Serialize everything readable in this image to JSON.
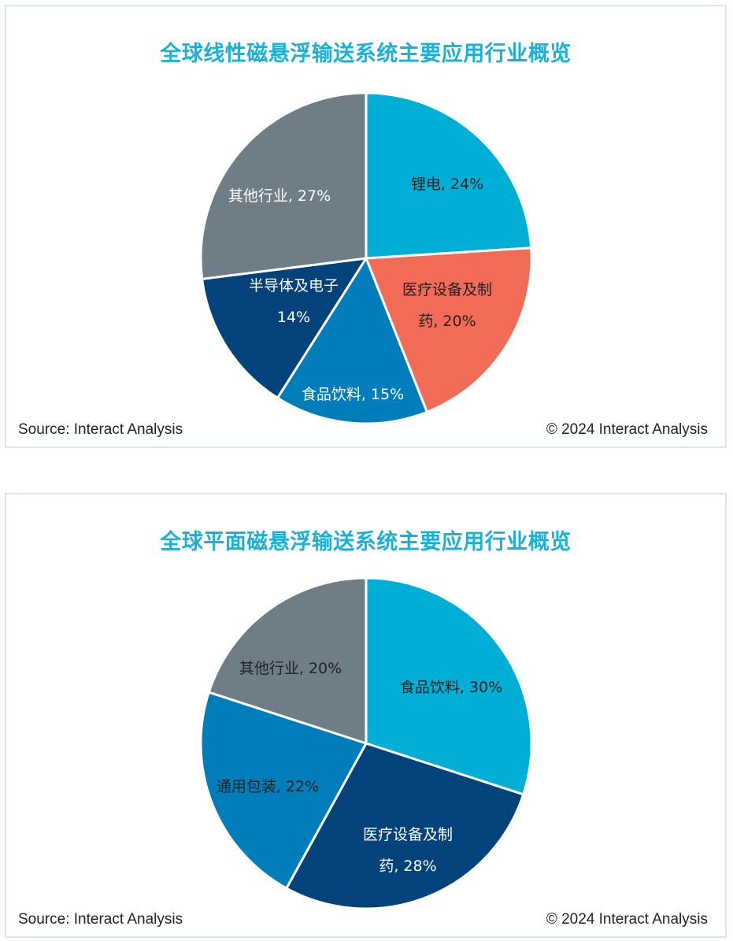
{
  "chart_data": [
    {
      "type": "pie",
      "title": "全球线性磁悬浮输送系统主要应用行业概览",
      "slices": [
        {
          "label": "锂电, 24%",
          "value": 24,
          "color": "#00aed6",
          "text_color": "#222222"
        },
        {
          "label": "医疗设备及制药, 20%",
          "value": 20,
          "color": "#f26b57",
          "text_color": "#222222"
        },
        {
          "label": "食品饮料, 15%",
          "value": 15,
          "color": "#007dba",
          "text_color": "#ffffff"
        },
        {
          "label": "半导体及电子 14%",
          "value": 14,
          "color": "#04427b",
          "text_color": "#ffffff"
        },
        {
          "label": "其他行业, 27%",
          "value": 27,
          "color": "#6f7e86",
          "text_color": "#ffffff"
        }
      ],
      "source": "Source: Interact Analysis",
      "copyright": "© 2024 Interact Analysis"
    },
    {
      "type": "pie",
      "title": "全球平面磁悬浮输送系统主要应用行业概览",
      "slices": [
        {
          "label": "食品饮料, 30%",
          "value": 30,
          "color": "#00aed6",
          "text_color": "#222222"
        },
        {
          "label": "医疗设备及制药, 28%",
          "value": 28,
          "color": "#04427b",
          "text_color": "#ffffff"
        },
        {
          "label": "通用包装, 22%",
          "value": 22,
          "color": "#007dba",
          "text_color": "#222222"
        },
        {
          "label": "其他行业, 20%",
          "value": 20,
          "color": "#6f7e86",
          "text_color": "#222222"
        }
      ],
      "source": "Source: Interact Analysis",
      "copyright": "© 2024 Interact Analysis"
    }
  ]
}
